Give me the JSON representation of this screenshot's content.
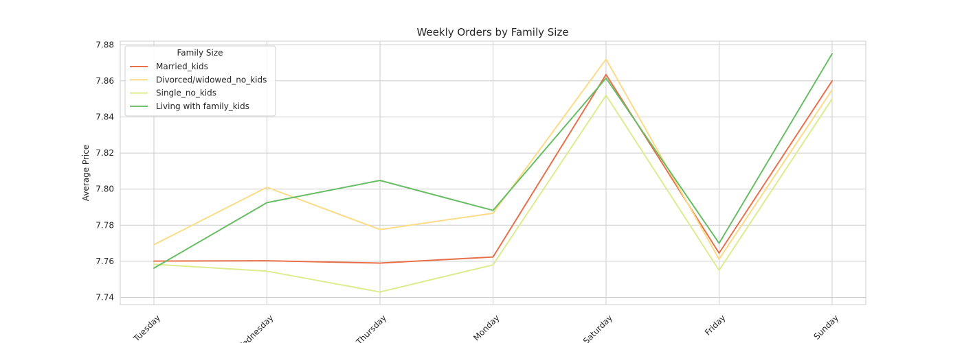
{
  "chart_data": {
    "type": "line",
    "title": "Weekly Orders by Family Size",
    "xlabel": "",
    "ylabel": "Average Price",
    "categories": [
      "Tuesday",
      "Wednesday",
      "Thursday",
      "Monday",
      "Saturday",
      "Friday",
      "Sunday"
    ],
    "ylim": [
      7.736,
      7.882
    ],
    "yticks": [
      "7.74",
      "7.76",
      "7.78",
      "7.80",
      "7.82",
      "7.84",
      "7.86",
      "7.88"
    ],
    "grid": true,
    "legend": {
      "title": "Family Size",
      "placement": "top-left"
    },
    "series": [
      {
        "name": "Married_kids",
        "color": "#e8704a",
        "values": [
          7.7601,
          7.7603,
          7.759,
          7.7624,
          7.8635,
          7.7645,
          7.86
        ]
      },
      {
        "name": "Divorced/widowed_no_kids",
        "color": "#fbdb86",
        "values": [
          7.7692,
          7.801,
          7.7776,
          7.7866,
          7.872,
          7.7612,
          7.855
        ]
      },
      {
        "name": "Single_no_kids",
        "color": "#dcec8e",
        "values": [
          7.7583,
          7.7545,
          7.743,
          7.758,
          7.852,
          7.755,
          7.85
        ]
      },
      {
        "name": "Living with family_kids",
        "color": "#66bd63",
        "values": [
          7.7562,
          7.7925,
          7.8048,
          7.7882,
          7.8615,
          7.77,
          7.875
        ]
      }
    ]
  }
}
